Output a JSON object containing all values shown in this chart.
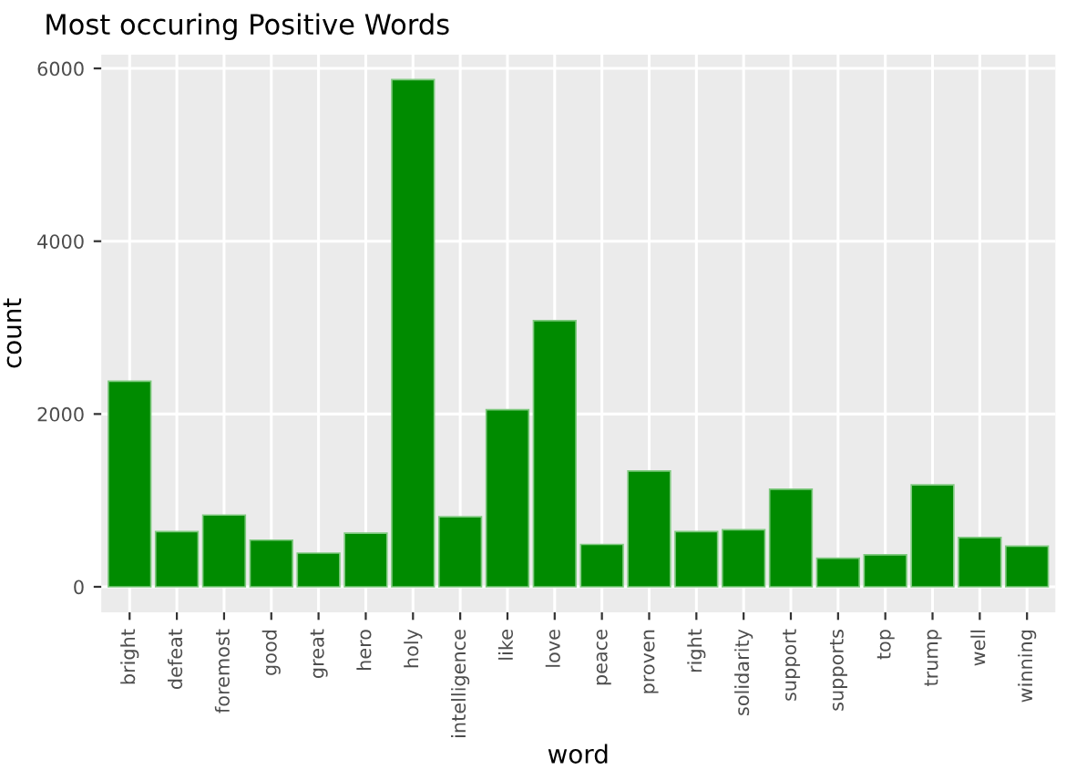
{
  "chart_data": {
    "type": "bar",
    "title": "Most occuring Positive Words",
    "xlabel": "word",
    "ylabel": "count",
    "categories": [
      "bright",
      "defeat",
      "foremost",
      "good",
      "great",
      "hero",
      "holy",
      "intelligence",
      "like",
      "love",
      "peace",
      "proven",
      "right",
      "solidarity",
      "support",
      "supports",
      "top",
      "trump",
      "well",
      "winning"
    ],
    "values": [
      2380,
      640,
      830,
      540,
      390,
      620,
      5870,
      810,
      2050,
      3080,
      490,
      1340,
      640,
      660,
      1130,
      330,
      370,
      1180,
      570,
      470
    ],
    "color": "#008b00",
    "ylim": [
      -295,
      6160
    ],
    "yticks": [
      0,
      2000,
      4000,
      6000
    ],
    "grid": true
  }
}
